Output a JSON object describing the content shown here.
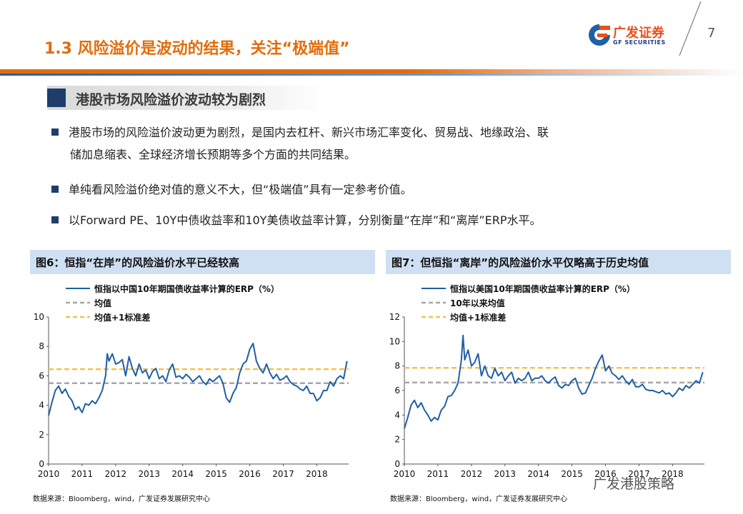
{
  "header": {
    "title": "1.3 风险溢价是波动的结果，关注“极端值”",
    "logo_cn": "广发证券",
    "logo_en": "GF SECURITIES",
    "page_number": "7"
  },
  "section": {
    "heading": "港股市场风险溢价波动较为剧烈"
  },
  "bullets": [
    "港股市场的风险溢价波动更为剧烈，是国内去杠杆、新兴市场汇率变化、贸易战、地缘政治、联",
    "储加息缩表、全球经济增长预期等多个方面的共同结果。",
    "单纯看风险溢价绝对值的意义不大，但“极端值”具有一定参考价值。",
    "以Forward PE、10Y中债收益率和10Y美债收益率计算，分别衡量“在岸”和“离岸”ERP水平。"
  ],
  "footer": {
    "source_left": "数据来源：Bloomberg，wind，广发证券发展研究中心",
    "source_right": "数据来源：Bloomberg，wind，广发证券发展研究中心",
    "watermark": "广发港股策略"
  },
  "colors": {
    "line": "#1f5fa6",
    "mean": "#a6a6a6",
    "mean_plus_sd": "#f2c14e",
    "accent": "#e36c0a"
  },
  "chart_data": [
    {
      "type": "line",
      "title": "图6：恒指“在岸”的风险溢价水平已经较高",
      "x_ticks": [
        "2010",
        "2011",
        "2012",
        "2013",
        "2014",
        "2015",
        "2016",
        "2017",
        "2018"
      ],
      "y_ticks": [
        "0",
        "2",
        "4",
        "6",
        "8",
        "10"
      ],
      "ylim": [
        0,
        10
      ],
      "xlim": [
        2010.0,
        2018.95
      ],
      "legend": [
        "恒指以中国10年期国债收益率计算的ERP（%）",
        "均值",
        "均值+1标准差"
      ],
      "mean": 5.5,
      "mean_plus_sd": 6.45,
      "series": [
        {
          "name": "恒指以中国10年期国债收益率计算的ERP（%）",
          "x": [
            2010.0,
            2010.1,
            2010.2,
            2010.3,
            2010.4,
            2010.5,
            2010.6,
            2010.7,
            2010.8,
            2010.9,
            2011.0,
            2011.1,
            2011.2,
            2011.3,
            2011.4,
            2011.5,
            2011.6,
            2011.7,
            2011.75,
            2011.8,
            2011.9,
            2012.0,
            2012.1,
            2012.2,
            2012.3,
            2012.4,
            2012.5,
            2012.6,
            2012.7,
            2012.8,
            2012.9,
            2013.0,
            2013.1,
            2013.2,
            2013.3,
            2013.4,
            2013.5,
            2013.6,
            2013.7,
            2013.8,
            2013.9,
            2014.0,
            2014.1,
            2014.2,
            2014.3,
            2014.4,
            2014.5,
            2014.6,
            2014.7,
            2014.8,
            2014.9,
            2015.0,
            2015.1,
            2015.2,
            2015.3,
            2015.4,
            2015.5,
            2015.6,
            2015.7,
            2015.8,
            2015.9,
            2016.0,
            2016.1,
            2016.2,
            2016.3,
            2016.4,
            2016.5,
            2016.6,
            2016.7,
            2016.8,
            2016.9,
            2017.0,
            2017.1,
            2017.2,
            2017.3,
            2017.4,
            2017.5,
            2017.6,
            2017.7,
            2017.8,
            2017.9,
            2018.0,
            2018.1,
            2018.2,
            2018.3,
            2018.4,
            2018.5,
            2018.6,
            2018.7,
            2018.8,
            2018.9
          ],
          "values": [
            3.3,
            4.2,
            5.0,
            5.3,
            4.8,
            5.1,
            4.6,
            4.3,
            3.7,
            3.9,
            3.5,
            4.1,
            4.0,
            4.3,
            4.1,
            4.5,
            5.0,
            6.0,
            7.5,
            7.0,
            7.5,
            6.8,
            6.9,
            7.1,
            6.0,
            7.3,
            6.5,
            6.0,
            6.8,
            6.2,
            6.4,
            5.8,
            6.3,
            6.5,
            5.8,
            6.0,
            5.6,
            6.4,
            6.8,
            5.9,
            6.0,
            5.8,
            6.1,
            5.9,
            5.6,
            5.8,
            6.0,
            5.6,
            5.4,
            5.8,
            5.6,
            5.8,
            6.0,
            5.5,
            4.5,
            4.2,
            4.8,
            5.2,
            6.2,
            6.8,
            7.0,
            7.8,
            8.2,
            7.0,
            6.5,
            6.2,
            6.8,
            6.2,
            5.8,
            6.1,
            5.7,
            5.8,
            6.0,
            5.6,
            5.4,
            5.3,
            5.1,
            5.0,
            5.3,
            4.8,
            4.8,
            4.3,
            4.5,
            5.0,
            5.0,
            5.6,
            5.3,
            5.8,
            6.0,
            5.8,
            7.0
          ]
        }
      ]
    },
    {
      "type": "line",
      "title": "图7：但恒指“离岸”的风险溢价水平仅略高于历史均值",
      "x_ticks": [
        "2010",
        "2011",
        "2012",
        "2013",
        "2014",
        "2015",
        "2016",
        "2017",
        "2018"
      ],
      "y_ticks": [
        "0",
        "2",
        "4",
        "6",
        "8",
        "10",
        "12"
      ],
      "ylim": [
        0,
        12
      ],
      "xlim": [
        2010.0,
        2018.95
      ],
      "legend": [
        "恒指以美国10年期国债收益率计算的ERP（%）",
        "10年以来均值",
        "均值+1标准差"
      ],
      "mean": 6.65,
      "mean_plus_sd": 7.85,
      "series": [
        {
          "name": "恒指以美国10年期国债收益率计算的ERP（%）",
          "x": [
            2010.0,
            2010.1,
            2010.2,
            2010.3,
            2010.4,
            2010.5,
            2010.6,
            2010.7,
            2010.8,
            2010.9,
            2011.0,
            2011.1,
            2011.2,
            2011.3,
            2011.4,
            2011.5,
            2011.6,
            2011.7,
            2011.75,
            2011.8,
            2011.9,
            2012.0,
            2012.1,
            2012.2,
            2012.3,
            2012.4,
            2012.5,
            2012.6,
            2012.7,
            2012.8,
            2012.9,
            2013.0,
            2013.1,
            2013.2,
            2013.3,
            2013.4,
            2013.5,
            2013.6,
            2013.7,
            2013.8,
            2013.9,
            2014.0,
            2014.1,
            2014.2,
            2014.3,
            2014.4,
            2014.5,
            2014.6,
            2014.7,
            2014.8,
            2014.9,
            2015.0,
            2015.1,
            2015.2,
            2015.3,
            2015.4,
            2015.5,
            2015.6,
            2015.7,
            2015.8,
            2015.9,
            2016.0,
            2016.1,
            2016.2,
            2016.3,
            2016.4,
            2016.5,
            2016.6,
            2016.7,
            2016.8,
            2016.9,
            2017.0,
            2017.1,
            2017.2,
            2017.3,
            2017.4,
            2017.5,
            2017.6,
            2017.7,
            2017.8,
            2017.9,
            2018.0,
            2018.1,
            2018.2,
            2018.3,
            2018.4,
            2018.5,
            2018.6,
            2018.7,
            2018.8,
            2018.9
          ],
          "values": [
            2.9,
            3.8,
            4.8,
            5.2,
            4.6,
            5.0,
            4.4,
            4.0,
            3.5,
            3.8,
            3.6,
            4.4,
            4.7,
            5.5,
            5.6,
            6.0,
            6.6,
            8.5,
            10.5,
            8.5,
            9.3,
            8.0,
            8.3,
            9.0,
            7.2,
            8.0,
            7.2,
            7.0,
            7.8,
            7.2,
            7.5,
            6.8,
            7.2,
            7.5,
            6.6,
            7.0,
            6.8,
            7.0,
            7.5,
            6.8,
            7.0,
            7.0,
            7.2,
            6.8,
            6.6,
            6.9,
            7.1,
            6.4,
            6.2,
            6.5,
            6.4,
            6.8,
            7.0,
            6.2,
            5.7,
            5.8,
            6.4,
            7.0,
            7.8,
            8.4,
            8.9,
            7.6,
            8.0,
            7.4,
            7.2,
            6.9,
            7.2,
            6.8,
            6.5,
            6.9,
            6.3,
            6.3,
            6.5,
            6.1,
            6.0,
            6.0,
            5.9,
            5.8,
            6.0,
            5.7,
            5.8,
            5.5,
            5.8,
            6.2,
            6.0,
            6.4,
            6.2,
            6.5,
            6.8,
            6.6,
            7.5
          ]
        }
      ]
    }
  ]
}
